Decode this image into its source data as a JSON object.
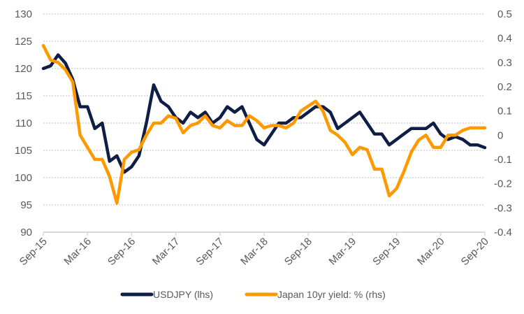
{
  "chart_data": {
    "type": "line",
    "title": "",
    "xlabel": "",
    "ylabel_left": "",
    "ylabel_right": "",
    "x_tick_labels": [
      "Sep-15",
      "Mar-16",
      "Sep-16",
      "Mar-17",
      "Sep-17",
      "Mar-18",
      "Sep-18",
      "Mar-19",
      "Sep-19",
      "Mar-20",
      "Sep-20"
    ],
    "y_left": {
      "range": [
        90,
        130
      ],
      "ticks": [
        90,
        95,
        100,
        105,
        110,
        115,
        120,
        125,
        130
      ],
      "tick_labels": [
        "90",
        "95",
        "100",
        "105",
        "110",
        "115",
        "120",
        "125",
        "130"
      ]
    },
    "y_right": {
      "range": [
        -0.4,
        0.5
      ],
      "ticks": [
        -0.4,
        -0.3,
        -0.2,
        -0.1,
        0,
        0.1,
        0.2,
        0.3,
        0.4,
        0.5
      ],
      "tick_labels": [
        "-0.4",
        "-0.3",
        "-0.2",
        "-0.1",
        "0",
        "0.1",
        "0.2",
        "0.3",
        "0.4",
        "0.5"
      ]
    },
    "grid": true,
    "legend_position": "bottom",
    "x_months": [
      "Sep-15",
      "Oct-15",
      "Nov-15",
      "Dec-15",
      "Jan-16",
      "Feb-16",
      "Mar-16",
      "Apr-16",
      "May-16",
      "Jun-16",
      "Jul-16",
      "Aug-16",
      "Sep-16",
      "Oct-16",
      "Nov-16",
      "Dec-16",
      "Jan-17",
      "Feb-17",
      "Mar-17",
      "Apr-17",
      "May-17",
      "Jun-17",
      "Jul-17",
      "Aug-17",
      "Sep-17",
      "Oct-17",
      "Nov-17",
      "Dec-17",
      "Jan-18",
      "Feb-18",
      "Mar-18",
      "Apr-18",
      "May-18",
      "Jun-18",
      "Jul-18",
      "Aug-18",
      "Sep-18",
      "Oct-18",
      "Nov-18",
      "Dec-18",
      "Jan-19",
      "Feb-19",
      "Mar-19",
      "Apr-19",
      "May-19",
      "Jun-19",
      "Jul-19",
      "Aug-19",
      "Sep-19",
      "Oct-19",
      "Nov-19",
      "Dec-19",
      "Jan-20",
      "Feb-20",
      "Mar-20",
      "Apr-20",
      "May-20",
      "Jun-20",
      "Jul-20",
      "Aug-20",
      "Sep-20"
    ],
    "series": [
      {
        "name": "USDJPY (lhs)",
        "axis": "left",
        "color": "#0E1E45",
        "values": [
          120,
          120.5,
          122.5,
          121,
          118,
          113,
          113,
          109,
          110,
          103,
          104,
          101,
          102,
          104,
          110,
          117,
          114,
          113,
          111,
          110,
          112,
          111,
          112,
          110,
          111,
          113,
          112,
          113,
          110,
          107,
          106,
          108,
          110,
          110,
          111,
          111,
          112,
          113,
          113,
          112,
          109,
          110,
          111,
          112,
          110,
          108,
          108,
          106,
          107,
          108,
          109,
          109,
          109,
          110,
          108,
          107,
          107.5,
          107,
          106,
          106,
          105.5
        ]
      },
      {
        "name": "Japan 10yr yield: % (rhs)",
        "axis": "right",
        "color": "#FF9900",
        "values": [
          0.37,
          0.31,
          0.3,
          0.27,
          0.22,
          0.0,
          -0.05,
          -0.1,
          -0.1,
          -0.17,
          -0.28,
          -0.1,
          -0.07,
          -0.06,
          0.0,
          0.05,
          0.05,
          0.08,
          0.07,
          0.01,
          0.04,
          0.05,
          0.08,
          0.04,
          0.03,
          0.06,
          0.04,
          0.04,
          0.08,
          0.06,
          0.03,
          0.04,
          0.04,
          0.03,
          0.05,
          0.1,
          0.12,
          0.14,
          0.1,
          0.02,
          0.0,
          -0.03,
          -0.08,
          -0.05,
          -0.06,
          -0.14,
          -0.14,
          -0.25,
          -0.22,
          -0.15,
          -0.07,
          -0.02,
          0.0,
          -0.05,
          -0.05,
          0.0,
          0.0,
          0.02,
          0.03,
          0.03,
          0.03
        ]
      }
    ]
  },
  "legend": {
    "items": [
      {
        "label": "USDJPY (lhs)",
        "color": "#0E1E45"
      },
      {
        "label": "Japan 10yr yield: % (rhs)",
        "color": "#FF9900"
      }
    ]
  }
}
